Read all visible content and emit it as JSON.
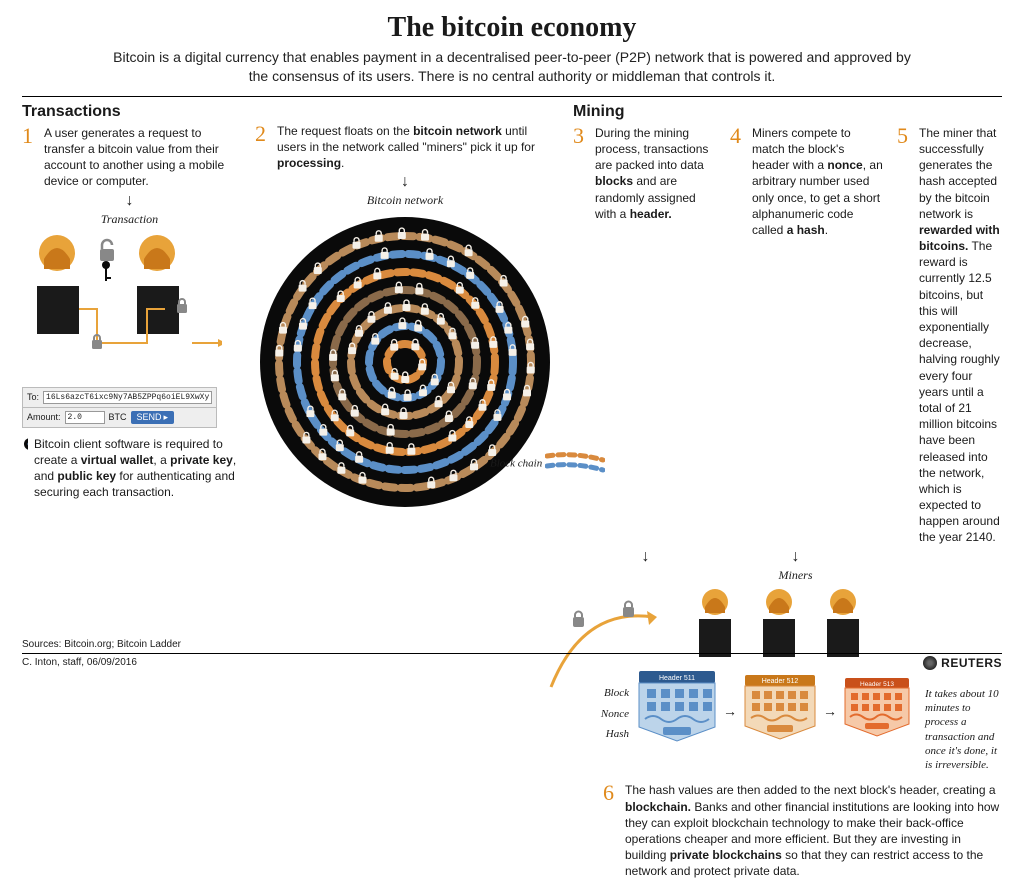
{
  "title": "The bitcoin economy",
  "subtitle": "Bitcoin is a digital currency that enables payment in a decentralised peer-to-peer (P2P) network that is powered and approved by the consensus of its users. There is no central authority or middleman that controls it.",
  "sections": {
    "transactions": "Transactions",
    "mining": "Mining"
  },
  "steps": {
    "s1": {
      "n": "1",
      "t": "A user generates a request to transfer a bitcoin value from their account to another using a mobile device or computer."
    },
    "s2": {
      "n": "2",
      "t": "The request floats on the <b>bitcoin network</b> until users in the network called \"miners\" pick it up for <b>processing</b>."
    },
    "s3": {
      "n": "3",
      "t": "During the mining process, transactions are packed into data <b>blocks</b> and are randomly assigned with a <b>header.</b>"
    },
    "s4": {
      "n": "4",
      "t": "Miners compete to match the block's header with a <b>nonce</b>, an arbitrary number used only once, to get a short alphanumeric code called <b>a hash</b>."
    },
    "s5": {
      "n": "5",
      "t": "The miner that successfully generates the hash accepted by the bitcoin network is <b>rewarded with bitcoins.</b> The reward is currently 12.5 bitcoins, but this will exponentially decrease, halving roughly every four years until a total of 21 million bitcoins have been released into the network, which is expected to happen around the year 2140."
    },
    "s6": {
      "n": "6",
      "t": "The hash values are then added to the next block's header, creating a <b>blockchain.</b> Banks and other financial institutions are looking into how they can exploit blockchain technology to make their back-office operations cheaper and more efficient. But they are investing in building <b>private blockchains</b> so that they can restrict access to the network and protect private data."
    }
  },
  "labels": {
    "transaction": "Transaction",
    "network": "Bitcoin network",
    "miners": "Miners",
    "block": "Block",
    "nonce": "Nonce",
    "hash": "Hash",
    "blockchain": "Block chain"
  },
  "txform": {
    "to_label": "To:",
    "to_value": "16Ls6azcT6ixc9Ny7AB5ZPPq6oiEL9XwXy",
    "amount_label": "Amount:",
    "amount_value": "2.0",
    "unit": "BTC",
    "send": "SEND"
  },
  "wallet_note": "Bitcoin client software is required to create a <b>virtual wallet</b>, a <b>private key</b>, and <b>public key</b> for authenticating and securing each transaction.",
  "time_note": "It takes about 10 minutes to process a transaction and once it's done, it is irreversible.",
  "headers": {
    "h1": "Header 511",
    "h2": "Header 512",
    "h3": "Header 513"
  },
  "sources": "Sources: Bitcoin.org; Bitcoin Ladder",
  "credit": "C. Inton, staff, 06/09/2016",
  "agency": "REUTERS",
  "colors": {
    "orange": "#e8a33a",
    "dark_orange": "#c9781a",
    "black": "#0a0a0a",
    "grey": "#3a3a3a",
    "blue": "#5b8fc7",
    "dark_blue": "#2d5a8f",
    "warm1": "#d98a3e",
    "warm2": "#e36b2d",
    "light": "#f5f0e8"
  },
  "viz": {
    "network_rings": 7,
    "ring_colors": [
      "#5b8fc7",
      "#d98a3e",
      "#8a6a4a",
      "#b88a5a",
      "#5b8fc7",
      "#d98a3e",
      "#8a6a4a"
    ],
    "lock_count_estimate": 120
  }
}
